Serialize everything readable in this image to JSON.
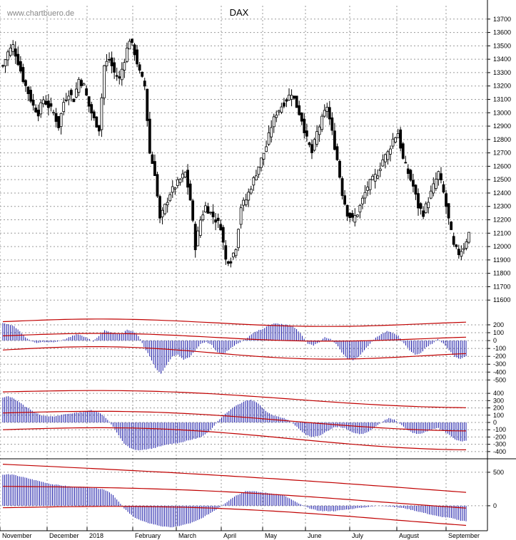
{
  "chart_data": [
    {
      "type": "candlestick",
      "title": "DAX",
      "watermark": "www.chartbuero.de",
      "ylim": [
        11500,
        13800
      ],
      "y_ticks": [
        "13700",
        "13600",
        "13500",
        "13400",
        "13300",
        "13200",
        "13100",
        "13000",
        "12900",
        "12800",
        "12700",
        "12600",
        "12500",
        "12400",
        "12300",
        "12200",
        "12100",
        "12000",
        "11900",
        "11800",
        "11700",
        "11600"
      ],
      "x_months": [
        "November",
        "December",
        "2018",
        "February",
        "March",
        "April",
        "May",
        "June",
        "July",
        "August",
        "September"
      ],
      "close_path": [
        [
          0,
          13350
        ],
        [
          2,
          13450
        ],
        [
          4,
          13500
        ],
        [
          6,
          13380
        ],
        [
          8,
          13250
        ],
        [
          10,
          13150
        ],
        [
          12,
          13050
        ],
        [
          14,
          13000
        ],
        [
          16,
          13100
        ],
        [
          18,
          13050
        ],
        [
          20,
          13000
        ],
        [
          22,
          12900
        ],
        [
          24,
          13080
        ],
        [
          26,
          13150
        ],
        [
          28,
          13100
        ],
        [
          30,
          13250
        ],
        [
          32,
          13200
        ],
        [
          34,
          13050
        ],
        [
          36,
          12950
        ],
        [
          38,
          12880
        ],
        [
          40,
          13350
        ],
        [
          42,
          13400
        ],
        [
          44,
          13300
        ],
        [
          46,
          13250
        ],
        [
          48,
          13400
        ],
        [
          50,
          13550
        ],
        [
          52,
          13450
        ],
        [
          54,
          13300
        ],
        [
          56,
          13200
        ],
        [
          58,
          12700
        ],
        [
          60,
          12550
        ],
        [
          62,
          12200
        ],
        [
          64,
          12300
        ],
        [
          66,
          12400
        ],
        [
          68,
          12450
        ],
        [
          70,
          12500
        ],
        [
          72,
          12550
        ],
        [
          74,
          12350
        ],
        [
          76,
          12000
        ],
        [
          78,
          12200
        ],
        [
          80,
          12300
        ],
        [
          82,
          12250
        ],
        [
          84,
          12200
        ],
        [
          86,
          12150
        ],
        [
          88,
          11900
        ],
        [
          90,
          11900
        ],
        [
          92,
          12000
        ],
        [
          94,
          12300
        ],
        [
          96,
          12350
        ],
        [
          98,
          12450
        ],
        [
          100,
          12550
        ],
        [
          102,
          12650
        ],
        [
          104,
          12750
        ],
        [
          106,
          12900
        ],
        [
          108,
          13000
        ],
        [
          110,
          13050
        ],
        [
          112,
          13100
        ],
        [
          114,
          13150
        ],
        [
          116,
          13050
        ],
        [
          118,
          12950
        ],
        [
          120,
          12800
        ],
        [
          122,
          12700
        ],
        [
          124,
          12850
        ],
        [
          126,
          12950
        ],
        [
          128,
          13050
        ],
        [
          130,
          12850
        ],
        [
          132,
          12650
        ],
        [
          134,
          12400
        ],
        [
          136,
          12250
        ],
        [
          138,
          12200
        ],
        [
          140,
          12250
        ],
        [
          142,
          12350
        ],
        [
          144,
          12450
        ],
        [
          146,
          12500
        ],
        [
          148,
          12550
        ],
        [
          150,
          12650
        ],
        [
          152,
          12700
        ],
        [
          154,
          12800
        ],
        [
          156,
          12850
        ],
        [
          158,
          12650
        ],
        [
          160,
          12550
        ],
        [
          162,
          12450
        ],
        [
          164,
          12300
        ],
        [
          166,
          12250
        ],
        [
          168,
          12350
        ],
        [
          170,
          12450
        ],
        [
          172,
          12550
        ],
        [
          174,
          12400
        ],
        [
          176,
          12200
        ],
        [
          178,
          12000
        ],
        [
          180,
          11950
        ],
        [
          182,
          12000
        ],
        [
          184,
          12100
        ]
      ],
      "total_days": 184
    },
    {
      "type": "bar",
      "name": "oscillator-1",
      "y_ticks": [
        "200",
        "100",
        "0",
        "-100",
        "-200",
        "-300",
        "-400",
        "-500"
      ],
      "ylim": [
        -560,
        290
      ],
      "values": [
        220,
        210,
        180,
        120,
        40,
        -10,
        -30,
        -20,
        -25,
        -20,
        -10,
        20,
        50,
        80,
        60,
        30,
        -10,
        60,
        130,
        110,
        90,
        80,
        140,
        120,
        60,
        -80,
        -200,
        -350,
        -420,
        -310,
        -200,
        -180,
        -240,
        -210,
        -130,
        -40,
        -20,
        -60,
        -150,
        -170,
        -120,
        -60,
        -20,
        20,
        80,
        120,
        150,
        190,
        220,
        210,
        200,
        190,
        150,
        60,
        -40,
        -60,
        -20,
        40,
        20,
        -40,
        -150,
        -230,
        -250,
        -200,
        -120,
        -40,
        40,
        80,
        120,
        100,
        60,
        -40,
        -120,
        -180,
        -160,
        -80,
        -40,
        20,
        -40,
        -120,
        -210,
        -230,
        -200
      ]
    },
    {
      "type": "bar",
      "name": "oscillator-2",
      "y_ticks": [
        "400",
        "300",
        "200",
        "100",
        "0",
        "-100",
        "-200",
        "-300",
        "-400"
      ],
      "ylim": [
        -460,
        460
      ],
      "values": [
        340,
        360,
        330,
        280,
        220,
        180,
        130,
        100,
        90,
        80,
        90,
        110,
        120,
        130,
        140,
        150,
        170,
        150,
        110,
        40,
        -60,
        -180,
        -290,
        -350,
        -380,
        -380,
        -370,
        -360,
        -340,
        -320,
        -300,
        -290,
        -280,
        -260,
        -240,
        -220,
        -200,
        -150,
        -70,
        20,
        100,
        160,
        220,
        260,
        300,
        310,
        280,
        210,
        140,
        100,
        80,
        60,
        20,
        -40,
        -110,
        -170,
        -200,
        -190,
        -160,
        -110,
        -70,
        -60,
        -80,
        -120,
        -150,
        -160,
        -140,
        -90,
        -40,
        20,
        60,
        40,
        -20,
        -80,
        -130,
        -160,
        -150,
        -120,
        -90,
        -80,
        -120,
        -170,
        -230,
        -260,
        -250
      ]
    },
    {
      "type": "bar",
      "name": "oscillator-3",
      "y_ticks": [
        "500",
        "0"
      ],
      "ylim": [
        -320,
        680
      ],
      "values": [
        460,
        470,
        460,
        440,
        420,
        400,
        380,
        360,
        340,
        320,
        310,
        300,
        290,
        280,
        280,
        280,
        270,
        260,
        250,
        220,
        160,
        60,
        -40,
        -120,
        -180,
        -220,
        -250,
        -270,
        -290,
        -310,
        -320,
        -320,
        -300,
        -280,
        -260,
        -230,
        -190,
        -140,
        -90,
        -40,
        20,
        80,
        140,
        180,
        220,
        220,
        210,
        200,
        190,
        180,
        170,
        150,
        110,
        60,
        20,
        -20,
        -50,
        -70,
        -80,
        -80,
        -80,
        -70,
        -60,
        -50,
        -40,
        -30,
        -20,
        -10,
        0,
        0,
        -10,
        -20,
        -30,
        -40,
        -60,
        -80,
        -100,
        -120,
        -140,
        -160,
        -170,
        -180,
        -200,
        -220,
        -230
      ]
    }
  ]
}
